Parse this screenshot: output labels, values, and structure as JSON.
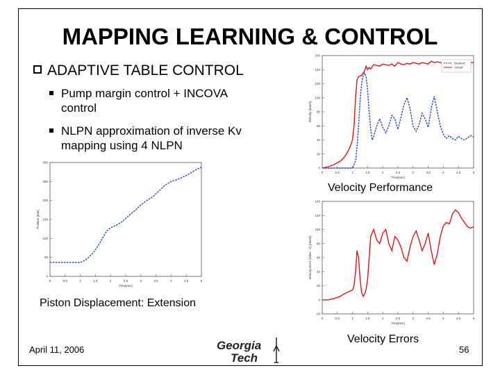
{
  "slide": {
    "title": "MAPPING LEARNING & CONTROL",
    "bullet": "ADAPTIVE TABLE CONTROL",
    "sub1_line1": "Pump margin control + INCOVA",
    "sub1_line2": "control",
    "sub2_line1": "NLPN approximation of inverse Kv",
    "sub2_line2": "mapping using 4 NLPN",
    "footer_date": "April 11, 2006",
    "page_number": "56",
    "logo_line1": "Georgia",
    "logo_line2": "Tech"
  },
  "chart_data": [
    {
      "type": "line",
      "title": "Velocity Performance",
      "xlabel": "Time[sec]",
      "ylabel": "Velocity [mm/s]",
      "xlim": [
        0,
        5
      ],
      "ylim": [
        0,
        160
      ],
      "xticks": [
        "0",
        "0.5",
        "1",
        "1.5",
        "2",
        "2.5",
        "3",
        "3.5",
        "4",
        "4.5",
        "5"
      ],
      "yticks": [
        "0",
        "20",
        "40",
        "60",
        "80",
        "100",
        "120",
        "140",
        "160"
      ],
      "legend_position": "top-right",
      "series": [
        {
          "name": "Desired",
          "color": "#1f3fd8",
          "style": "dashed",
          "x": [
            0,
            1.0,
            1.1,
            1.15,
            1.2,
            1.25,
            1.3,
            1.35,
            1.4,
            1.45,
            1.5,
            1.55,
            1.6,
            1.65,
            1.7,
            1.8,
            1.9,
            2.0,
            2.1,
            2.2,
            2.3,
            2.4,
            2.5,
            2.6,
            2.7,
            2.8,
            2.9,
            3.0,
            3.1,
            3.2,
            3.3,
            3.4,
            3.5,
            3.6,
            3.7,
            3.8,
            3.9,
            4.0,
            4.1,
            4.2,
            4.3,
            4.4,
            4.5,
            4.6,
            4.7,
            4.8,
            4.9,
            5.0
          ],
          "y": [
            0,
            0,
            10,
            30,
            60,
            95,
            120,
            132,
            135,
            130,
            110,
            80,
            55,
            40,
            45,
            60,
            70,
            58,
            50,
            60,
            75,
            70,
            55,
            72,
            90,
            100,
            85,
            60,
            52,
            62,
            78,
            70,
            58,
            85,
            102,
            80,
            60,
            48,
            42,
            46,
            42,
            40,
            45,
            42,
            40,
            43,
            46,
            44
          ]
        },
        {
          "name": "Actual",
          "color": "#e01414",
          "style": "solid",
          "x": [
            0,
            0.2,
            0.4,
            0.6,
            0.7,
            0.8,
            0.9,
            1.0,
            1.05,
            1.1,
            1.15,
            1.2,
            1.3,
            1.4,
            1.45,
            1.5,
            1.55,
            1.6,
            1.7,
            1.8,
            1.9,
            2.0,
            2.1,
            2.2,
            2.3,
            2.4,
            2.5,
            2.6,
            2.7,
            2.8,
            2.9,
            3.0,
            3.1,
            3.2,
            3.3,
            3.4,
            3.5,
            3.6,
            3.7,
            3.8,
            3.9,
            4.0,
            4.2,
            4.4,
            4.6,
            4.8,
            5.0
          ],
          "y": [
            0,
            2,
            5,
            10,
            14,
            20,
            28,
            40,
            60,
            100,
            125,
            130,
            132,
            138,
            145,
            140,
            143,
            141,
            147,
            146,
            145,
            148,
            147,
            146,
            148,
            145,
            150,
            148,
            147,
            149,
            148,
            150,
            149,
            148,
            150,
            149,
            148,
            152,
            150,
            151,
            150,
            149,
            150,
            151,
            149,
            150,
            150
          ]
        }
      ]
    },
    {
      "type": "line",
      "title": "Piston Displacement: Extension",
      "xlabel": "Time[sec]",
      "ylabel": "Position [mm]",
      "xlim": [
        0,
        5
      ],
      "ylim": [
        0,
        300
      ],
      "xticks": [
        "0",
        "0.5",
        "1",
        "1.5",
        "2",
        "2.5",
        "3",
        "3.5",
        "4",
        "4.5",
        "5"
      ],
      "yticks": [
        "0",
        "50",
        "100",
        "150",
        "200",
        "250",
        "300"
      ],
      "series": [
        {
          "color": "#1f3fd8",
          "style": "dashed",
          "x": [
            0,
            0.2,
            0.4,
            0.6,
            0.8,
            1.0,
            1.1,
            1.2,
            1.3,
            1.4,
            1.5,
            1.6,
            1.7,
            1.8,
            1.9,
            2.0,
            2.2,
            2.4,
            2.6,
            2.8,
            3.0,
            3.2,
            3.4,
            3.6,
            3.8,
            4.0,
            4.2,
            4.4,
            4.6,
            4.8,
            5.0
          ],
          "y": [
            37,
            37,
            37,
            37,
            37,
            37,
            40,
            45,
            52,
            60,
            70,
            82,
            96,
            110,
            122,
            128,
            135,
            145,
            160,
            173,
            188,
            200,
            210,
            225,
            240,
            250,
            255,
            262,
            270,
            280,
            288
          ]
        }
      ]
    },
    {
      "type": "line",
      "title": "Velocity Errors",
      "xlabel": "Time[sec]",
      "ylabel": "Velocity Error (Vdes - V) [mm/s]",
      "xlim": [
        0,
        5
      ],
      "ylim": [
        -20,
        140
      ],
      "xticks": [
        "0",
        "0.5",
        "1",
        "1.5",
        "2",
        "2.5",
        "3",
        "3.5",
        "4",
        "4.5",
        "5"
      ],
      "yticks": [
        "-20",
        "0",
        "20",
        "40",
        "60",
        "80",
        "100",
        "120",
        "140"
      ],
      "series": [
        {
          "color": "#e01414",
          "style": "solid",
          "x": [
            0,
            0.2,
            0.4,
            0.6,
            0.7,
            0.8,
            0.9,
            1.0,
            1.05,
            1.1,
            1.15,
            1.2,
            1.25,
            1.3,
            1.35,
            1.4,
            1.45,
            1.5,
            1.55,
            1.6,
            1.7,
            1.8,
            1.9,
            2.0,
            2.1,
            2.2,
            2.3,
            2.4,
            2.5,
            2.6,
            2.7,
            2.8,
            2.9,
            3.0,
            3.1,
            3.2,
            3.3,
            3.4,
            3.5,
            3.6,
            3.7,
            3.8,
            3.9,
            4.0,
            4.1,
            4.2,
            4.3,
            4.4,
            4.5,
            4.6,
            4.7,
            4.8,
            4.9,
            5.0
          ],
          "y": [
            0,
            0,
            2,
            5,
            8,
            10,
            12,
            14,
            20,
            40,
            70,
            60,
            30,
            10,
            5,
            8,
            15,
            30,
            60,
            90,
            100,
            85,
            80,
            95,
            100,
            80,
            70,
            90,
            85,
            75,
            60,
            55,
            75,
            90,
            98,
            85,
            70,
            80,
            95,
            70,
            50,
            65,
            90,
            105,
            110,
            108,
            122,
            128,
            124,
            116,
            110,
            104,
            102,
            104
          ]
        }
      ]
    }
  ]
}
